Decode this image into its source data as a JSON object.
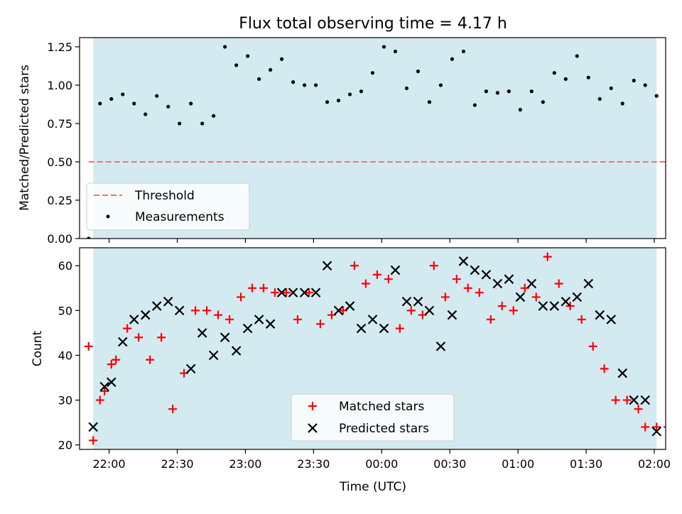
{
  "colors": {
    "span": "#d3eaf1",
    "threshold": "#ff6f6f",
    "matched": "#ff0000",
    "predicted": "#000000",
    "measurement": "#000000"
  },
  "chart_data": [
    {
      "type": "scatter",
      "title": "Flux total observing time = 4.17 h",
      "ylabel": "Matched/Predicted stars",
      "xlabel": "",
      "ylim": [
        0,
        1.31
      ],
      "yticks": [
        0.0,
        0.25,
        0.5,
        0.75,
        1.0,
        1.25
      ],
      "ytick_labels": [
        "0.00",
        "0.25",
        "0.50",
        "0.75",
        "1.00",
        "1.25"
      ],
      "observing_span": [
        "21:53",
        "02:01"
      ],
      "threshold": {
        "name": "Threshold",
        "value": 0.5,
        "x_range": [
          "21:51",
          "02:11"
        ]
      },
      "legend": {
        "placement": "lower-left",
        "entries": [
          "Threshold",
          "Measurements"
        ]
      },
      "series": [
        {
          "name": "Measurements",
          "x": [
            "21:51",
            "21:56",
            "22:01",
            "22:06",
            "22:11",
            "22:16",
            "22:21",
            "22:26",
            "22:31",
            "22:36",
            "22:41",
            "22:46",
            "22:51",
            "22:56",
            "23:01",
            "23:06",
            "23:11",
            "23:16",
            "23:21",
            "23:26",
            "23:31",
            "23:36",
            "23:41",
            "23:46",
            "23:51",
            "23:56",
            "00:01",
            "00:06",
            "00:11",
            "00:16",
            "00:21",
            "00:26",
            "00:31",
            "00:36",
            "00:41",
            "00:46",
            "00:51",
            "00:56",
            "01:01",
            "01:06",
            "01:11",
            "01:16",
            "01:21",
            "01:26",
            "01:31",
            "01:36",
            "01:41",
            "01:46",
            "01:51",
            "01:56",
            "02:01",
            "02:06",
            "02:11"
          ],
          "y": [
            0.0,
            0.88,
            0.91,
            0.94,
            0.88,
            0.81,
            0.93,
            0.86,
            0.75,
            0.88,
            0.75,
            0.8,
            1.25,
            1.13,
            1.19,
            1.04,
            1.1,
            1.17,
            1.02,
            1.0,
            1.0,
            0.89,
            0.9,
            0.94,
            0.96,
            1.08,
            1.25,
            1.22,
            0.98,
            1.09,
            0.89,
            1.0,
            1.17,
            1.22,
            0.87,
            0.96,
            0.95,
            0.96,
            0.84,
            0.96,
            0.89,
            1.08,
            1.04,
            1.19,
            1.05,
            0.91,
            0.98,
            0.88,
            1.03,
            1.0,
            0.93,
            0.0,
            0.0
          ]
        }
      ]
    },
    {
      "type": "scatter",
      "title": "",
      "ylabel": "Count",
      "xlabel": "Time (UTC)",
      "ylim": [
        19,
        64
      ],
      "yticks": [
        20,
        30,
        40,
        50,
        60
      ],
      "ytick_labels": [
        "20",
        "30",
        "40",
        "50",
        "60"
      ],
      "xticks": [
        "22:00",
        "22:30",
        "23:00",
        "23:30",
        "00:00",
        "00:30",
        "01:00",
        "01:30",
        "02:00"
      ],
      "observing_span": [
        "21:53",
        "02:01"
      ],
      "legend": {
        "placement": "lower-center",
        "entries": [
          "Matched stars",
          "Predicted stars"
        ]
      },
      "series": [
        {
          "name": "Matched stars",
          "x": [
            "21:51",
            "21:53",
            "21:56",
            "21:58",
            "22:01",
            "22:03",
            "22:08",
            "22:13",
            "22:18",
            "22:23",
            "22:28",
            "22:33",
            "22:38",
            "22:43",
            "22:48",
            "22:53",
            "22:58",
            "23:03",
            "23:08",
            "23:13",
            "23:18",
            "23:23",
            "23:28",
            "23:33",
            "23:38",
            "23:43",
            "23:48",
            "23:53",
            "23:58",
            "00:03",
            "00:08",
            "00:13",
            "00:18",
            "00:23",
            "00:28",
            "00:33",
            "00:38",
            "00:43",
            "00:48",
            "00:53",
            "00:58",
            "01:03",
            "01:08",
            "01:13",
            "01:18",
            "01:23",
            "01:28",
            "01:33",
            "01:38",
            "01:43",
            "01:48",
            "01:53",
            "01:56",
            "02:01",
            "02:06",
            "02:11"
          ],
          "y": [
            42,
            21,
            30,
            32,
            38,
            39,
            46,
            44,
            39,
            44,
            28,
            36,
            50,
            50,
            49,
            48,
            53,
            55,
            55,
            54,
            54,
            48,
            54,
            47,
            49,
            50,
            60,
            56,
            58,
            57,
            46,
            50,
            49,
            60,
            53,
            57,
            55,
            54,
            48,
            51,
            50,
            55,
            53,
            62,
            56,
            51,
            48,
            42,
            37,
            30,
            30,
            28,
            24,
            24,
            24,
            24
          ]
        },
        {
          "name": "Predicted stars",
          "x": [
            "21:53",
            "21:58",
            "22:01",
            "22:06",
            "22:11",
            "22:16",
            "22:21",
            "22:26",
            "22:31",
            "22:36",
            "22:41",
            "22:46",
            "22:51",
            "22:56",
            "23:01",
            "23:06",
            "23:11",
            "23:16",
            "23:21",
            "23:26",
            "23:31",
            "23:36",
            "23:41",
            "23:46",
            "23:51",
            "23:56",
            "00:01",
            "00:06",
            "00:11",
            "00:16",
            "00:21",
            "00:26",
            "00:31",
            "00:36",
            "00:41",
            "00:46",
            "00:51",
            "00:56",
            "01:01",
            "01:06",
            "01:11",
            "01:16",
            "01:21",
            "01:26",
            "01:31",
            "01:36",
            "01:41",
            "01:46",
            "01:51",
            "01:56",
            "02:01"
          ],
          "y": [
            24,
            33,
            34,
            43,
            48,
            49,
            51,
            52,
            50,
            37,
            45,
            40,
            44,
            41,
            46,
            48,
            47,
            54,
            54,
            54,
            54,
            60,
            50,
            51,
            46,
            48,
            46,
            59,
            52,
            52,
            50,
            42,
            49,
            61,
            59,
            58,
            56,
            57,
            53,
            56,
            51,
            51,
            52,
            53,
            56,
            49,
            48,
            36,
            30,
            30,
            23
          ]
        }
      ]
    }
  ]
}
